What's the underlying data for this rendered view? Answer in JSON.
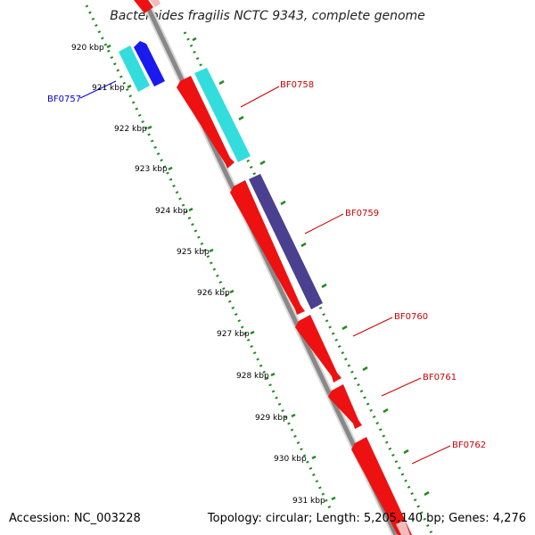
{
  "title": "Bacteroides fragilis NCTC 9343, complete genome",
  "footer": {
    "accession": "Accession: NC_003228",
    "summary": "Topology: circular; Length: 5,205,140 bp; Genes: 4,276"
  },
  "scale_labels": [
    "920 kbp",
    "921 kbp",
    "922 kbp",
    "923 kbp",
    "924 kbp",
    "925 kbp",
    "926 kbp",
    "927 kbp",
    "928 kbp",
    "929 kbp",
    "930 kbp",
    "931 kbp"
  ],
  "gene_labels": [
    {
      "name": "BF0757",
      "color": "#0000cc"
    },
    {
      "name": "BF0758",
      "color": "#cc0000"
    },
    {
      "name": "BF0759",
      "color": "#cc0000"
    },
    {
      "name": "BF0760",
      "color": "#cc0000"
    },
    {
      "name": "BF0761",
      "color": "#cc0000"
    },
    {
      "name": "BF0762",
      "color": "#cc0000"
    }
  ],
  "colors": {
    "forward_gene": "#ee1111",
    "cog_cyan": "#33dddd",
    "cog_blue": "#1a1aee",
    "cog_purple": "#4b3f8f",
    "backbone": "#888888",
    "ruler": "#228b22"
  }
}
